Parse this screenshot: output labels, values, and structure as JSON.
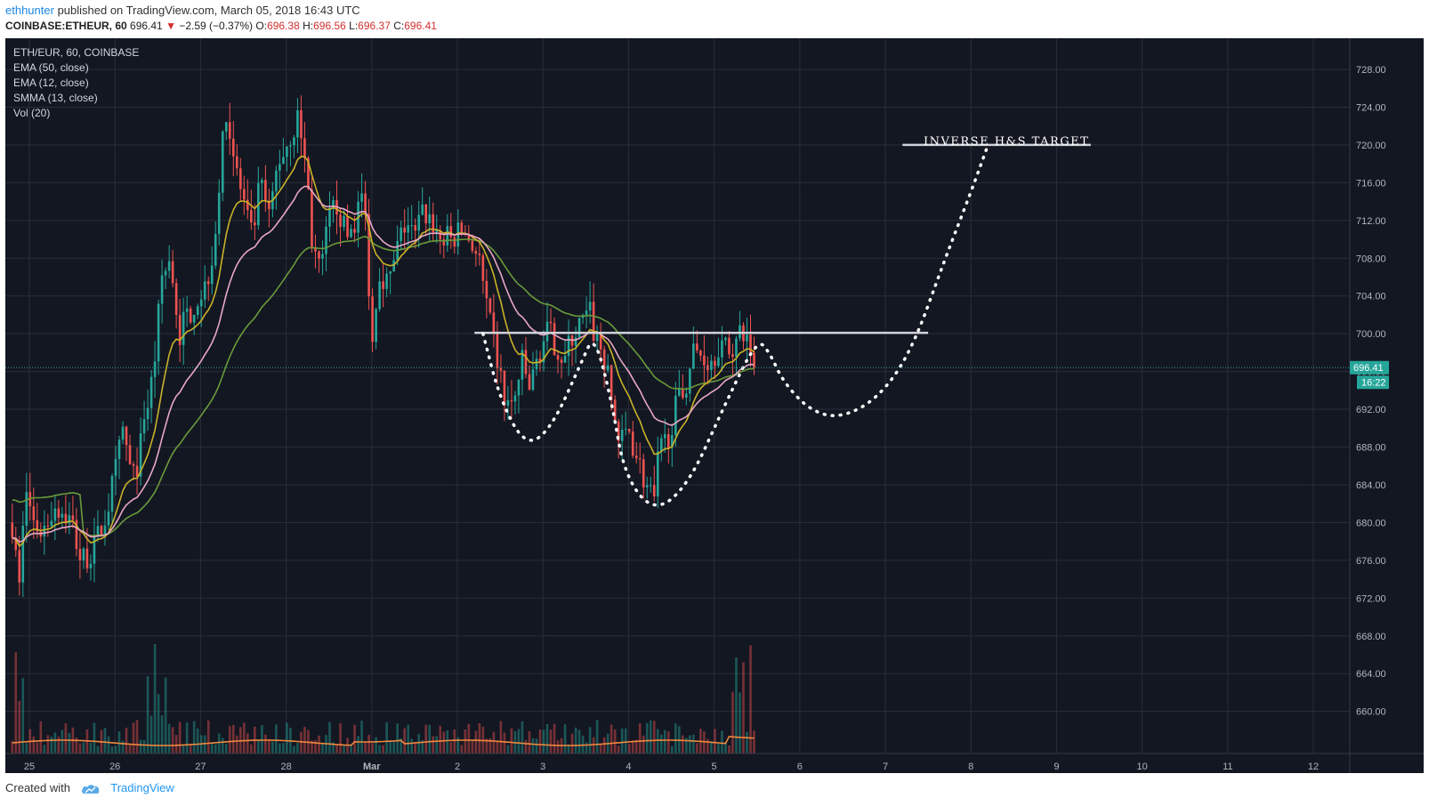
{
  "header": {
    "user": "ethhunter",
    "published": "published on TradingView.com, March 05, 2018 16:43 UTC",
    "symbol": "COINBASE:ETHEUR, 60",
    "last": "696.41",
    "change": "−2.59 (−0.37%)",
    "o_label": "O:",
    "o": "696.38",
    "h_label": "H:",
    "h": "696.56",
    "l_label": "L:",
    "l": "696.37",
    "c_label": "C:",
    "c": "696.41"
  },
  "legend": [
    "ETH/EUR, 60, COINBASE",
    "EMA (50, close)",
    "EMA (12, close)",
    "SMMA (13, close)",
    "Vol (20)"
  ],
  "price_badge": "696.41",
  "time_badge": "16:22",
  "annotation": "INVERSE H&S TARGET",
  "footer": {
    "created": "Created with",
    "brand": "TradingView"
  },
  "colors": {
    "bg": "#131722",
    "grid": "#2a2e39",
    "up": "#26a69a",
    "down": "#ef5350",
    "ema50": "#6b9a3a",
    "ema12": "#c9b22a",
    "smma": "#e8a7c4",
    "volma": "#f0883e",
    "annot": "#ffffff"
  },
  "chart_data": {
    "type": "candlestick",
    "ylim": [
      657,
      731
    ],
    "y_ticks": [
      "728.00",
      "724.00",
      "720.00",
      "716.00",
      "712.00",
      "708.00",
      "704.00",
      "700.00",
      "696.00",
      "692.00",
      "688.00",
      "684.00",
      "680.00",
      "676.00",
      "672.00",
      "668.00",
      "664.00",
      "660.00"
    ],
    "y_tick_values": [
      728,
      724,
      720,
      716,
      712,
      708,
      704,
      700,
      696,
      692,
      688,
      684,
      680,
      676,
      672,
      668,
      664,
      660
    ],
    "x_ticks": [
      "25",
      "26",
      "27",
      "28",
      "Mar",
      "2",
      "3",
      "4",
      "5",
      "6",
      "7",
      "8",
      "9",
      "10",
      "11",
      "12"
    ],
    "x_tick_days": [
      0,
      1,
      2,
      3,
      4,
      5,
      6,
      7,
      8,
      9,
      10,
      11,
      12,
      13,
      14,
      15
    ],
    "close_path": [
      [
        -0.2,
        680
      ],
      [
        -0.12,
        673
      ],
      [
        -0.05,
        684
      ],
      [
        0.05,
        680
      ],
      [
        0.15,
        679
      ],
      [
        0.3,
        682
      ],
      [
        0.5,
        680
      ],
      [
        0.6,
        676
      ],
      [
        0.75,
        677
      ],
      [
        0.9,
        681
      ],
      [
        1.0,
        685
      ],
      [
        1.1,
        690
      ],
      [
        1.2,
        684
      ],
      [
        1.3,
        688
      ],
      [
        1.45,
        696
      ],
      [
        1.55,
        706
      ],
      [
        1.65,
        708
      ],
      [
        1.75,
        700
      ],
      [
        1.9,
        703
      ],
      [
        2.05,
        705
      ],
      [
        2.15,
        709
      ],
      [
        2.3,
        724
      ],
      [
        2.4,
        718
      ],
      [
        2.5,
        714
      ],
      [
        2.6,
        710
      ],
      [
        2.7,
        716
      ],
      [
        2.8,
        712
      ],
      [
        2.9,
        718
      ],
      [
        3.05,
        721
      ],
      [
        3.15,
        723
      ],
      [
        3.25,
        716
      ],
      [
        3.3,
        710
      ],
      [
        3.4,
        706
      ],
      [
        3.5,
        712
      ],
      [
        3.6,
        714
      ],
      [
        3.7,
        710
      ],
      [
        3.8,
        712
      ],
      [
        3.9,
        715
      ],
      [
        3.95,
        709
      ],
      [
        4.0,
        698
      ],
      [
        4.05,
        704
      ],
      [
        4.1,
        707
      ],
      [
        4.2,
        705
      ],
      [
        4.3,
        709
      ],
      [
        4.4,
        712
      ],
      [
        4.5,
        710
      ],
      [
        4.6,
        713
      ],
      [
        4.7,
        712
      ],
      [
        4.8,
        710
      ],
      [
        4.95,
        710
      ],
      [
        5.05,
        711
      ],
      [
        5.15,
        710
      ],
      [
        5.25,
        708
      ],
      [
        5.35,
        702
      ],
      [
        5.45,
        698
      ],
      [
        5.55,
        693
      ],
      [
        5.65,
        692
      ],
      [
        5.75,
        697
      ],
      [
        5.85,
        694
      ],
      [
        5.95,
        698
      ],
      [
        6.05,
        700
      ],
      [
        6.15,
        699
      ],
      [
        6.25,
        697
      ],
      [
        6.35,
        700
      ],
      [
        6.45,
        701
      ],
      [
        6.55,
        702
      ],
      [
        6.6,
        700
      ],
      [
        6.7,
        698
      ],
      [
        6.8,
        693
      ],
      [
        6.9,
        688
      ],
      [
        7.0,
        690
      ],
      [
        7.1,
        687
      ],
      [
        7.2,
        684
      ],
      [
        7.3,
        682
      ],
      [
        7.35,
        687
      ],
      [
        7.45,
        689
      ],
      [
        7.55,
        692
      ],
      [
        7.65,
        694
      ],
      [
        7.75,
        698
      ],
      [
        7.85,
        698
      ],
      [
        7.95,
        697
      ],
      [
        8.05,
        699
      ],
      [
        8.15,
        698
      ],
      [
        8.25,
        699
      ],
      [
        8.35,
        700
      ],
      [
        8.45,
        698
      ],
      [
        8.5,
        697
      ],
      [
        8.6,
        696.41
      ]
    ],
    "series": [
      {
        "name": "EMA (50, close)"
      },
      {
        "name": "EMA (12, close)"
      },
      {
        "name": "SMMA (13, close)"
      },
      {
        "name": "Vol (20)"
      }
    ],
    "neckline": {
      "x0": 5.2,
      "x1": 10.5,
      "y": 700.1
    },
    "target_line": {
      "x0": 10.2,
      "x1": 12.4,
      "y": 720
    },
    "dotted_pattern": [
      [
        5.3,
        700
      ],
      [
        5.5,
        693
      ],
      [
        5.8,
        688
      ],
      [
        6.1,
        690
      ],
      [
        6.45,
        697
      ],
      [
        6.6,
        700
      ],
      [
        6.8,
        693
      ],
      [
        6.95,
        685
      ],
      [
        7.3,
        681
      ],
      [
        7.7,
        684
      ],
      [
        8.1,
        692
      ],
      [
        8.5,
        699.5
      ],
      [
        8.65,
        698
      ],
      [
        8.8,
        695
      ],
      [
        9.1,
        692
      ],
      [
        9.45,
        691
      ],
      [
        9.9,
        693
      ],
      [
        10.3,
        698
      ],
      [
        10.7,
        708
      ],
      [
        11.0,
        715
      ],
      [
        11.2,
        720
      ]
    ]
  }
}
